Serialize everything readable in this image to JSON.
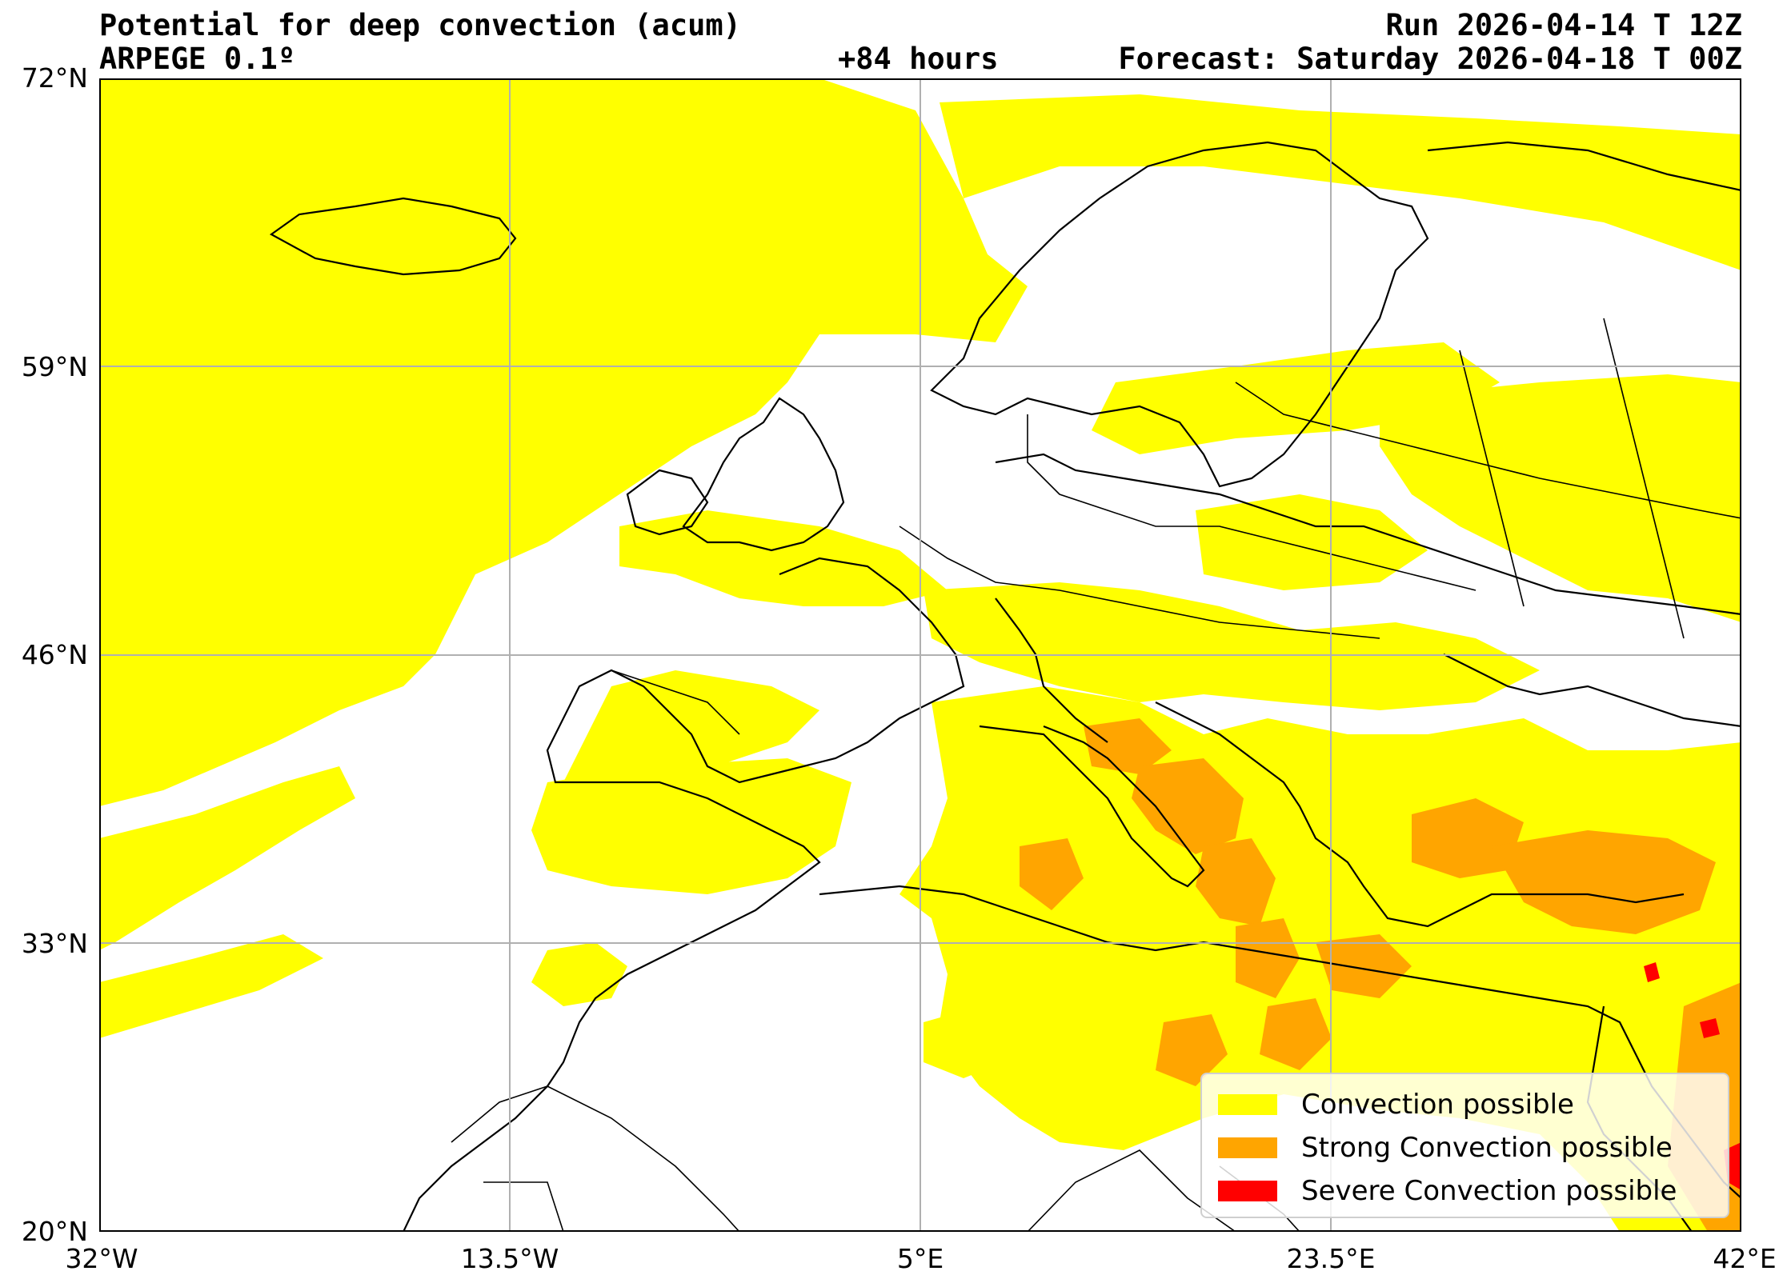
{
  "header": {
    "title": "Potential for deep convection (acum)",
    "model": "ARPEGE 0.1º",
    "lead_time": "+84 hours",
    "run": "Run 2026-04-14 T 12Z",
    "forecast": "Forecast: Saturday 2026-04-18 T 00Z"
  },
  "axes": {
    "lat_labels": [
      "72°N",
      "59°N",
      "46°N",
      "33°N",
      "20°N"
    ],
    "lon_labels": [
      "32°W",
      "13.5°W",
      "5°E",
      "23.5°E",
      "42°E"
    ],
    "lon_range": [
      -32,
      42
    ],
    "lat_range": [
      20,
      72
    ],
    "grid": true
  },
  "legend": {
    "items": [
      {
        "label": "Convection possible",
        "color": "#ffff00"
      },
      {
        "label": "Strong Convection possible",
        "color": "#ffa500"
      },
      {
        "label": "Severe Convection possible",
        "color": "#ff0000"
      }
    ]
  },
  "colors": {
    "convection": "#ffff00",
    "strong": "#ffa500",
    "severe": "#ff0000",
    "coastline": "#000000",
    "gridline": "#b0b0b0"
  }
}
